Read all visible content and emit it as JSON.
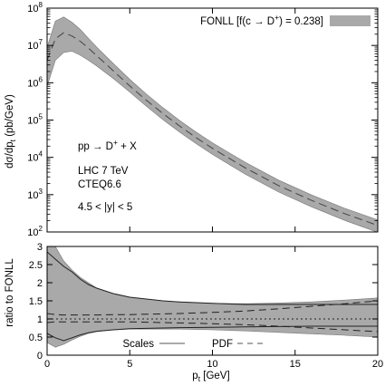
{
  "chart_data": [
    {
      "type": "area",
      "title": "",
      "xlabel": "",
      "ylabel_html": [
        "dσ/dp",
        "t",
        " (pb/GeV)"
      ],
      "ylabel": "dσ/dpt (pb/GeV)",
      "xlim": [
        0,
        20
      ],
      "ylim": [
        100,
        100000000
      ],
      "yscale": "log",
      "grid": false,
      "legend_position": "top-right",
      "x_ticks": [
        0,
        5,
        10,
        15,
        20
      ],
      "y_ticks": [
        {
          "value": 100,
          "base": "10",
          "exp": "2"
        },
        {
          "value": 1000,
          "base": "10",
          "exp": "3"
        },
        {
          "value": 10000,
          "base": "10",
          "exp": "4"
        },
        {
          "value": 100000,
          "base": "10",
          "exp": "5"
        },
        {
          "value": 1000000,
          "base": "10",
          "exp": "6"
        },
        {
          "value": 10000000,
          "base": "10",
          "exp": "7"
        },
        {
          "value": 100000000,
          "base": "10",
          "exp": "8"
        }
      ],
      "legend": {
        "label_parts": [
          "FONLL [f(c → D",
          "+",
          ") = 0.238]"
        ],
        "color": "#a9a9a9"
      },
      "annotations": {
        "process_parts": [
          "pp → D",
          "+",
          " + X"
        ],
        "energy": "LHC 7 TeV",
        "pdf": "CTEQ6.6",
        "rapidity": "4.5 < |y| < 5"
      },
      "x": [
        0,
        0.5,
        1,
        1.5,
        2,
        2.5,
        3,
        4,
        5,
        6,
        7,
        8,
        9,
        10,
        12,
        14,
        16,
        18,
        20
      ],
      "series": [
        {
          "role": "central",
          "style": "dashed",
          "values": [
            4000000,
            15000000,
            22000000,
            18000000,
            13000000,
            8500000,
            5300000,
            2100000,
            820000,
            340000,
            150000,
            70000,
            34000,
            17500,
            5200,
            1750,
            700,
            310,
            150
          ]
        },
        {
          "role": "upper",
          "values": [
            9000000,
            45000000,
            58000000,
            42000000,
            27000000,
            15500000,
            9000000,
            3300000,
            1230000,
            500000,
            215000,
            99000,
            48000,
            24500,
            7300,
            2450,
            980,
            430,
            210
          ]
        },
        {
          "role": "lower",
          "values": [
            800000,
            4000000,
            6500000,
            7000000,
            5500000,
            4000000,
            2800000,
            1300000,
            560000,
            235000,
            103000,
            48000,
            23500,
            12000,
            3500,
            1180,
            470,
            205,
            98
          ]
        }
      ]
    },
    {
      "type": "line",
      "title": "",
      "xlabel_parts": [
        "p",
        "t",
        " [GeV]"
      ],
      "xlabel": "pt [GeV]",
      "ylabel": "ratio to FONLL",
      "xlim": [
        0,
        20
      ],
      "ylim": [
        0,
        3
      ],
      "grid": false,
      "legend_position": "bottom-center",
      "x_ticks": [
        0,
        5,
        10,
        15,
        20
      ],
      "y_ticks": [
        0,
        0.5,
        1,
        1.5,
        2,
        2.5,
        3
      ],
      "legend": [
        {
          "label": "Scales",
          "style": "solid"
        },
        {
          "label": "PDF",
          "style": "dashed"
        }
      ],
      "x": [
        0,
        0.5,
        1,
        1.5,
        2,
        2.5,
        3,
        4,
        5,
        6,
        7,
        8,
        10,
        12,
        14,
        16,
        18,
        20
      ],
      "band": {
        "upper": [
          3.3,
          3.0,
          2.6,
          2.35,
          2.15,
          2.0,
          1.85,
          1.7,
          1.6,
          1.55,
          1.5,
          1.47,
          1.43,
          1.42,
          1.44,
          1.47,
          1.52,
          1.58
        ],
        "lower": [
          0.35,
          0.22,
          0.3,
          0.42,
          0.52,
          0.6,
          0.65,
          0.7,
          0.72,
          0.72,
          0.72,
          0.72,
          0.7,
          0.67,
          0.63,
          0.59,
          0.55,
          0.5
        ]
      },
      "series": [
        {
          "name": "Scales",
          "style": "solid",
          "upper": [
            2.85,
            2.65,
            2.45,
            2.3,
            2.1,
            1.95,
            1.85,
            1.7,
            1.6,
            1.55,
            1.5,
            1.47,
            1.43,
            1.4,
            1.4,
            1.4,
            1.4,
            1.4
          ],
          "lower": [
            0.6,
            0.48,
            0.4,
            0.48,
            0.56,
            0.62,
            0.66,
            0.7,
            0.73,
            0.74,
            0.75,
            0.76,
            0.77,
            0.78,
            0.79,
            0.8,
            0.8,
            0.8
          ]
        },
        {
          "name": "PDF",
          "style": "dashed",
          "upper": [
            1.15,
            1.12,
            1.11,
            1.11,
            1.11,
            1.11,
            1.11,
            1.12,
            1.12,
            1.13,
            1.14,
            1.15,
            1.18,
            1.22,
            1.28,
            1.35,
            1.42,
            1.5
          ],
          "lower": [
            0.9,
            0.92,
            0.92,
            0.92,
            0.92,
            0.92,
            0.92,
            0.92,
            0.92,
            0.91,
            0.9,
            0.89,
            0.87,
            0.84,
            0.8,
            0.75,
            0.7,
            0.65
          ]
        }
      ],
      "reference": [
        1.0,
        1.0
      ]
    }
  ]
}
